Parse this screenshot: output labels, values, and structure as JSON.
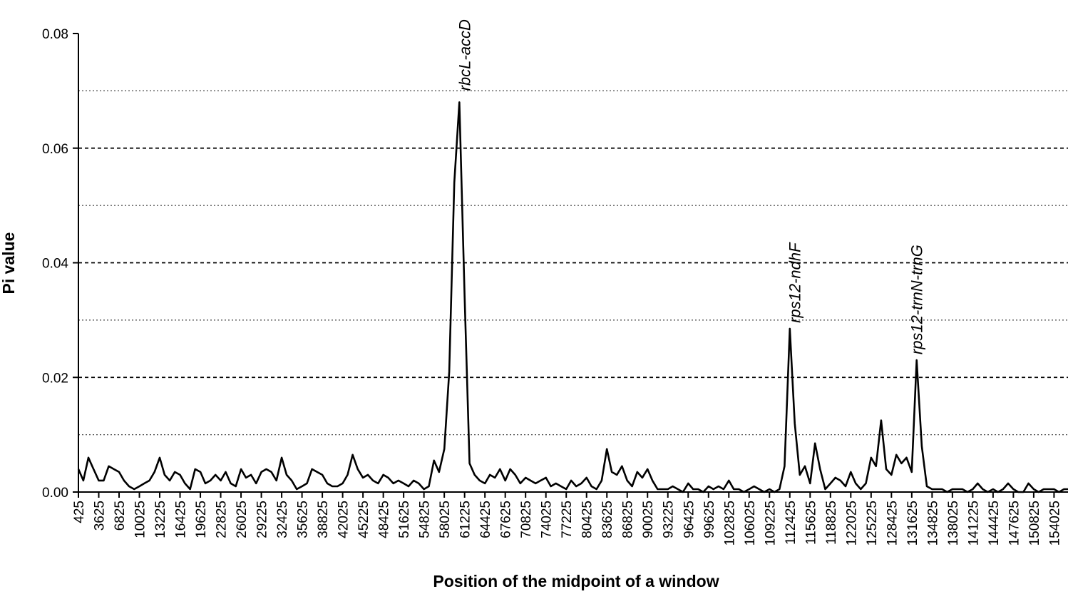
{
  "chart_data": {
    "type": "line",
    "title": "",
    "xlabel": "Position of the midpoint of a window",
    "ylabel": "Pi value",
    "xlim": [
      425,
      156225
    ],
    "ylim": [
      0,
      0.08
    ],
    "y_major_ticks": [
      0.0,
      0.02,
      0.04,
      0.06,
      0.08
    ],
    "y_tick_labels": [
      "0.00",
      "0.02",
      "0.04",
      "0.06",
      "0.08"
    ],
    "y_major_gridlines": [
      0.02,
      0.04,
      0.06
    ],
    "y_minor_gridlines": [
      0.01,
      0.03,
      0.05,
      0.07
    ],
    "x_tick_labels": [
      "425",
      "3625",
      "6825",
      "10025",
      "13225",
      "16425",
      "19625",
      "22825",
      "26025",
      "29225",
      "32425",
      "35625",
      "38825",
      "42025",
      "45225",
      "48425",
      "51625",
      "54825",
      "58025",
      "61225",
      "64425",
      "67625",
      "70825",
      "74025",
      "77225",
      "80425",
      "83625",
      "86825",
      "90025",
      "93225",
      "96425",
      "99625",
      "102825",
      "106025",
      "109225",
      "112425",
      "115625",
      "118825",
      "122025",
      "125225",
      "128425",
      "131625",
      "134825",
      "138025",
      "141225",
      "144425",
      "147625",
      "150825",
      "154025"
    ],
    "legend": "none",
    "series": [
      {
        "x": [
          425,
          1200,
          2000,
          2800,
          3625,
          4400,
          5200,
          6000,
          6825,
          7600,
          8400,
          9200,
          10025,
          10800,
          11600,
          12400,
          13225,
          14000,
          14800,
          15600,
          16425,
          17200,
          18000,
          18800,
          19625,
          20400,
          21200,
          22000,
          22825,
          23600,
          24400,
          25200,
          26025,
          26800,
          27600,
          28400,
          29225,
          30000,
          30800,
          31600,
          32425,
          33200,
          34000,
          34800,
          35625,
          36400,
          37200,
          38000,
          38825,
          39600,
          40400,
          41200,
          42025,
          42800,
          43600,
          44400,
          45225,
          46000,
          46800,
          47600,
          48425,
          49200,
          50000,
          50800,
          51625,
          52400,
          53200,
          54000,
          54825,
          55600,
          56400,
          57200,
          58025,
          58800,
          59600,
          60400,
          61225,
          62000,
          62800,
          63600,
          64425,
          65200,
          66000,
          66800,
          67625,
          68400,
          69200,
          70000,
          70825,
          71600,
          72400,
          73200,
          74025,
          74800,
          75600,
          76400,
          77225,
          78000,
          78800,
          79600,
          80425,
          81200,
          82000,
          82800,
          83625,
          84400,
          85200,
          86000,
          86825,
          87600,
          88400,
          89200,
          90025,
          90800,
          91600,
          92400,
          93225,
          94000,
          94800,
          95600,
          96425,
          97200,
          98000,
          98800,
          99625,
          100400,
          101200,
          102000,
          102825,
          103600,
          104400,
          105200,
          106025,
          106800,
          107600,
          108400,
          109225,
          110000,
          110800,
          111600,
          112425,
          113200,
          114000,
          114800,
          115625,
          116400,
          117200,
          118000,
          118825,
          119600,
          120400,
          121200,
          122025,
          122800,
          123600,
          124400,
          125225,
          126000,
          126800,
          127600,
          128425,
          129200,
          130000,
          130800,
          131625,
          132400,
          133200,
          134000,
          134825,
          135600,
          136400,
          137200,
          138025,
          138800,
          139600,
          140400,
          141225,
          142000,
          142800,
          143600,
          144425,
          145200,
          146000,
          146800,
          147625,
          148400,
          149200,
          150000,
          150825,
          151600,
          152400,
          153200,
          154025,
          154800,
          155600,
          156225
        ],
        "y": [
          0.004,
          0.002,
          0.006,
          0.004,
          0.002,
          0.002,
          0.0045,
          0.004,
          0.0035,
          0.002,
          0.001,
          0.0005,
          0.001,
          0.0015,
          0.002,
          0.0035,
          0.006,
          0.003,
          0.002,
          0.0035,
          0.003,
          0.0015,
          0.0005,
          0.004,
          0.0035,
          0.0015,
          0.002,
          0.003,
          0.002,
          0.0035,
          0.0015,
          0.001,
          0.004,
          0.0025,
          0.003,
          0.0015,
          0.0035,
          0.004,
          0.0035,
          0.002,
          0.006,
          0.003,
          0.002,
          0.0005,
          0.001,
          0.0015,
          0.004,
          0.0035,
          0.003,
          0.0015,
          0.001,
          0.001,
          0.0015,
          0.003,
          0.0065,
          0.004,
          0.0025,
          0.003,
          0.002,
          0.0015,
          0.003,
          0.0025,
          0.0015,
          0.002,
          0.0015,
          0.001,
          0.002,
          0.0015,
          0.0005,
          0.001,
          0.0055,
          0.0035,
          0.0075,
          0.021,
          0.054,
          0.068,
          0.034,
          0.005,
          0.003,
          0.002,
          0.0015,
          0.003,
          0.0025,
          0.004,
          0.002,
          0.004,
          0.003,
          0.0015,
          0.0025,
          0.002,
          0.0015,
          0.002,
          0.0025,
          0.001,
          0.0015,
          0.001,
          0.0005,
          0.002,
          0.001,
          0.0015,
          0.0025,
          0.001,
          0.0005,
          0.002,
          0.0075,
          0.0035,
          0.003,
          0.0045,
          0.002,
          0.001,
          0.0035,
          0.0025,
          0.004,
          0.002,
          0.0005,
          0.0005,
          0.0005,
          0.001,
          0.0005,
          0.0,
          0.0015,
          0.0005,
          0.0005,
          0.0,
          0.001,
          0.0005,
          0.001,
          0.0005,
          0.002,
          0.0005,
          0.0005,
          0.0,
          0.0005,
          0.001,
          0.0005,
          0.0,
          0.0005,
          0.0,
          0.0005,
          0.0045,
          0.0285,
          0.012,
          0.003,
          0.0045,
          0.0015,
          0.0085,
          0.004,
          0.0005,
          0.0015,
          0.0025,
          0.002,
          0.001,
          0.0035,
          0.0015,
          0.0005,
          0.0015,
          0.006,
          0.0045,
          0.0125,
          0.004,
          0.003,
          0.0065,
          0.005,
          0.006,
          0.0035,
          0.023,
          0.008,
          0.001,
          0.0005,
          0.0005,
          0.0005,
          0.0,
          0.0005,
          0.0005,
          0.0005,
          0.0,
          0.0005,
          0.0015,
          0.0005,
          0.0,
          0.0005,
          0.0,
          0.0005,
          0.0015,
          0.0005,
          0.0,
          0.0,
          0.0015,
          0.0005,
          0.0,
          0.0005,
          0.0005,
          0.0005,
          0.0,
          0.0005,
          0.0005
        ]
      }
    ],
    "annotations": [
      {
        "text": "rbcL-accD",
        "x": 61225,
        "y": 0.069
      },
      {
        "text": "rps12-ndhF",
        "x": 113200,
        "y": 0.0285
      },
      {
        "text": "rps12-trnN-trnG",
        "x": 132400,
        "y": 0.023
      }
    ]
  }
}
